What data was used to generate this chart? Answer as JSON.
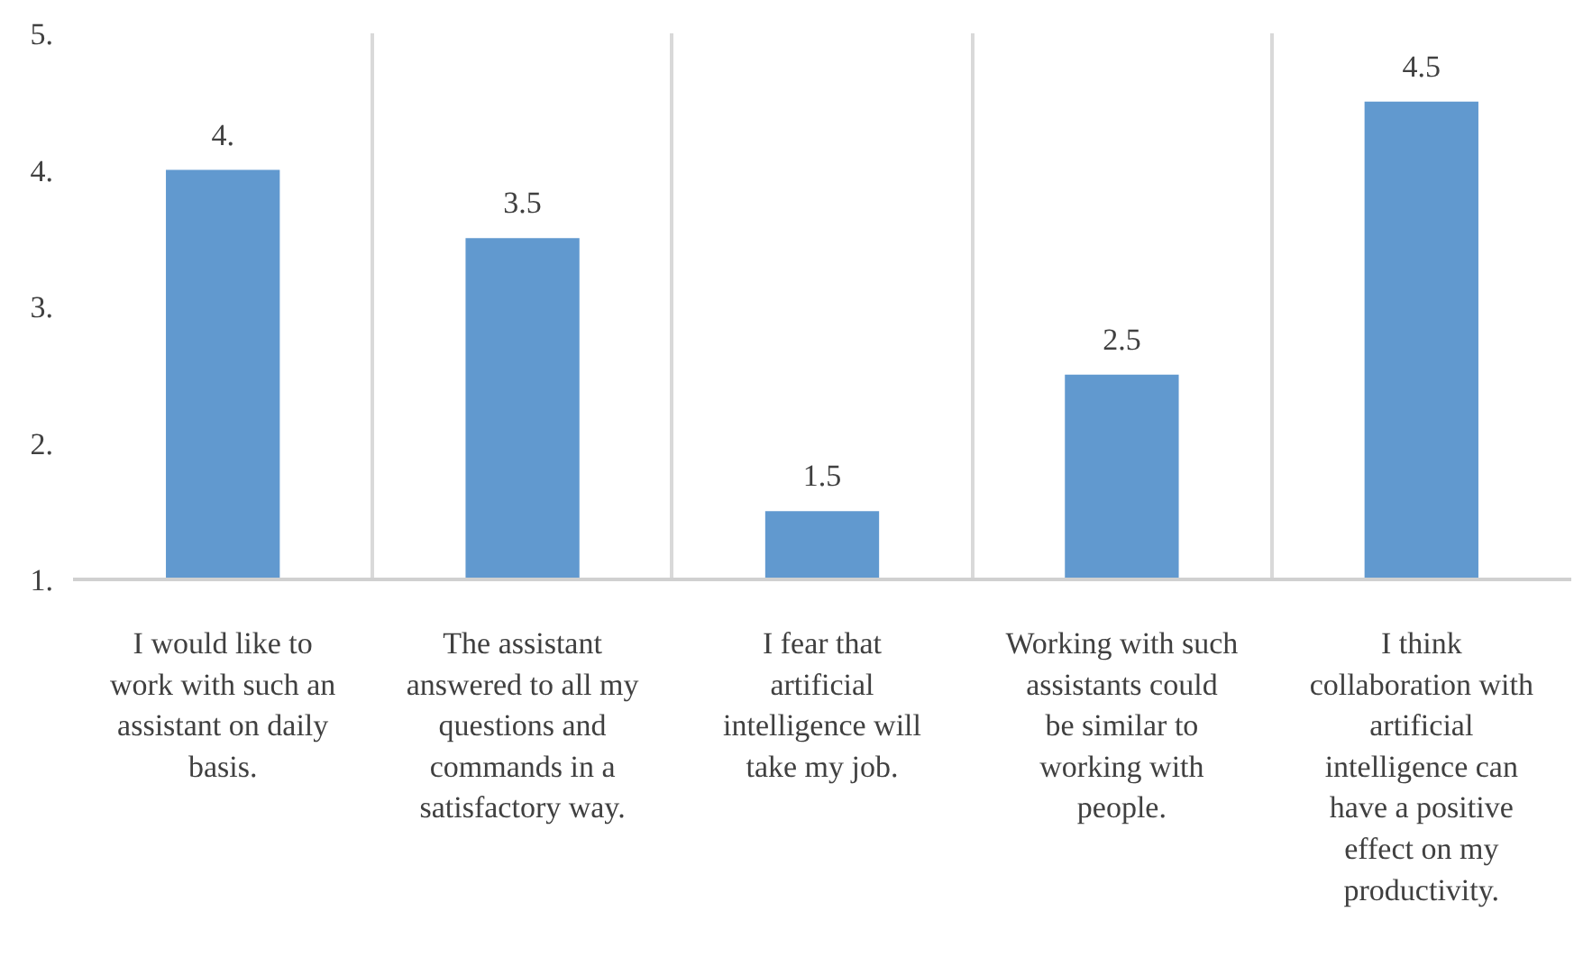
{
  "chart_data": {
    "type": "bar",
    "categories": [
      "I would like to work with such an assistant on daily basis.",
      "The assistant answered to all my questions and commands in a satisfactory way.",
      "I fear that artificial intelligence will take my job.",
      "Working with such assistants could be similar to working with people.",
      "I think collaboration with artificial intelligence can have a positive effect on my productivity."
    ],
    "values": [
      4,
      3.5,
      1.5,
      2.5,
      4.5
    ],
    "value_labels": [
      "4.",
      "3.5",
      "1.5",
      "2.5",
      "4.5"
    ],
    "color": "#6199cf",
    "ylim": [
      1,
      5
    ],
    "yticks": [
      {
        "value": 1,
        "label": "1."
      },
      {
        "value": 2,
        "label": "2."
      },
      {
        "value": 3,
        "label": "3."
      },
      {
        "value": 4,
        "label": "4."
      },
      {
        "value": 5,
        "label": "5."
      }
    ],
    "grid": "x"
  }
}
